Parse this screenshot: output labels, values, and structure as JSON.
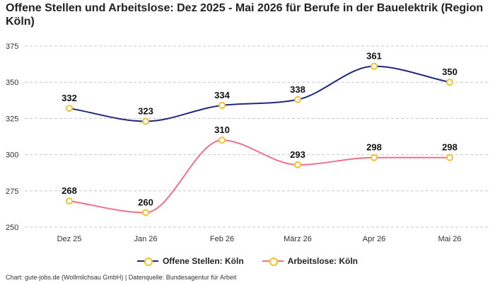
{
  "chart_data": {
    "type": "line",
    "title": "Offene Stellen und Arbeitslose: Dez 2025 - Mai 2026 für Berufe in der Bauelektrik (Region Köln)",
    "categories": [
      "Dez 25",
      "Jan 26",
      "Feb 26",
      "März 26",
      "Apr 26",
      "Mai 26"
    ],
    "series": [
      {
        "name": "Offene Stellen: Köln",
        "values": [
          332,
          323,
          334,
          338,
          361,
          350
        ],
        "color": "#1f2a7a"
      },
      {
        "name": "Arbeitslose: Köln",
        "values": [
          268,
          260,
          310,
          293,
          298,
          298
        ],
        "color": "#f07088"
      }
    ],
    "marker_color": "#f2c12e",
    "ylim": [
      250,
      375
    ],
    "yticks": [
      250,
      275,
      300,
      325,
      350,
      375
    ],
    "grid": true,
    "legend_position": "bottom"
  },
  "footer": "Chart: gute-jobs.de (Wollmilchsau GmbH) | Datenquelle: Bundesagentur für Arbeit"
}
